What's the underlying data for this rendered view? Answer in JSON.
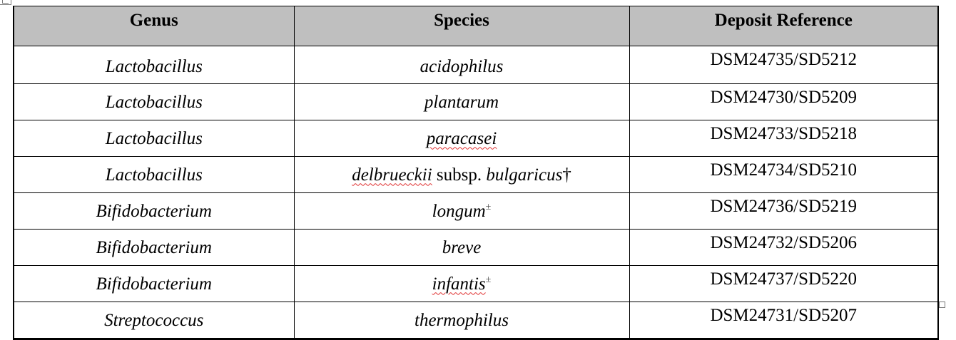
{
  "table": {
    "headers": [
      "Genus",
      "Species",
      "Deposit Reference"
    ],
    "rows": [
      {
        "genus": "Lactobacillus",
        "species": "acidophilus",
        "reference": "DSM24735/SD5212"
      },
      {
        "genus": "Lactobacillus",
        "species": "plantarum",
        "reference": "DSM24730/SD5209"
      },
      {
        "genus": "Lactobacillus",
        "species": "paracasei",
        "reference": "DSM24733/SD5218"
      },
      {
        "genus": "Lactobacillus",
        "species_parts": {
          "a": "delbrueckii",
          "b": " subsp. ",
          "c": "bulgaricus",
          "d": "†"
        },
        "reference": "DSM24734/SD5210"
      },
      {
        "genus": "Bifidobacterium",
        "species": "longum",
        "marker": "±",
        "reference": "DSM24736/SD5219"
      },
      {
        "genus": "Bifidobacterium",
        "species": "breve",
        "reference": "DSM24732/SD5206"
      },
      {
        "genus": "Bifidobacterium",
        "species": "infantis",
        "marker": "±",
        "reference": "DSM24737/SD5220"
      },
      {
        "genus": "Streptococcus",
        "species": "thermophilus",
        "reference": "DSM24731/SD5207"
      }
    ]
  }
}
